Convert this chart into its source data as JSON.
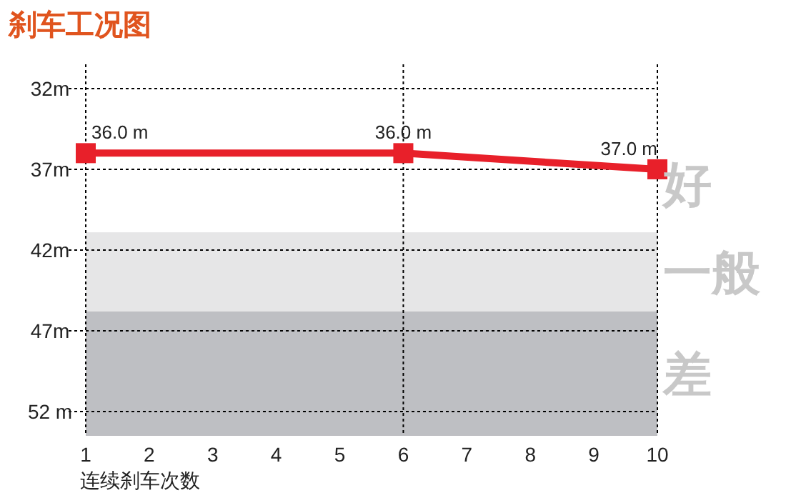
{
  "chart_data": {
    "type": "line",
    "title": "刹车工况图",
    "xlabel": "连续刹车次数",
    "x": [
      1,
      6,
      10
    ],
    "series": [
      {
        "color": "#e8202a",
        "values": [
          36.0,
          36.0,
          37.0
        ],
        "value_labels": [
          "36.0 m",
          "36.0 m",
          "37.0 m"
        ]
      }
    ],
    "marker": "square",
    "line_style": "solid",
    "xlim": [
      1,
      10
    ],
    "xticks": [
      1,
      2,
      3,
      4,
      5,
      6,
      7,
      8,
      9,
      10
    ],
    "ylim": [
      53.5,
      30.5
    ],
    "yticks": [
      {
        "value": 32,
        "label": "32m"
      },
      {
        "value": 37,
        "label": "37m"
      },
      {
        "value": 42,
        "label": "42m"
      },
      {
        "value": 47,
        "label": "47m"
      },
      {
        "value": 52,
        "label": "52 m"
      }
    ],
    "grid": "y",
    "annotations": [
      "好"
    ],
    "ref_lines": [
      {
        "axis": "x",
        "value": 6,
        "line_style": "dotted",
        "color": "#000000"
      }
    ],
    "bands": [
      {
        "axis": "y",
        "from": 40.9,
        "to": 45.8,
        "label": "一般",
        "color": "#e6e6e7"
      },
      {
        "axis": "y",
        "from": 45.8,
        "to": 53.5,
        "label": "差",
        "color": "#bebfc3"
      }
    ]
  }
}
